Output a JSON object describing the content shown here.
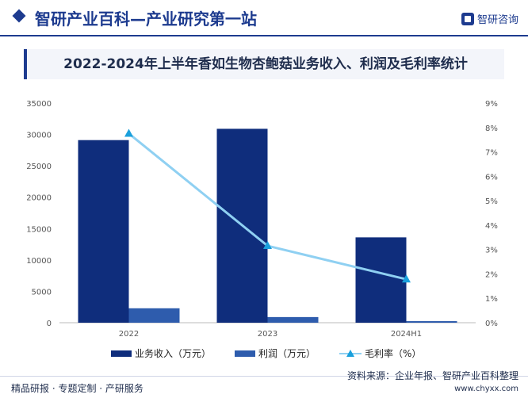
{
  "header": {
    "site_title": "智研产业百科—产业研究第一站",
    "brand": "智研咨询",
    "brand_icon": "zhiyan-logo-icon"
  },
  "chart_data": {
    "type": "bar",
    "title": "2022-2024年上半年香如生物杏鲍菇业务收入、利润及毛利率统计",
    "categories": [
      "2022",
      "2023",
      "2024H1"
    ],
    "series": [
      {
        "name": "业务收入（万元）",
        "kind": "bar",
        "axis": "left",
        "color": "#0f2d7c",
        "values": [
          29100,
          30900,
          13600
        ]
      },
      {
        "name": "利润（万元）",
        "kind": "bar",
        "axis": "left",
        "color": "#2e5cad",
        "values": [
          2300,
          900,
          250
        ]
      },
      {
        "name": "毛利率（%）",
        "kind": "line",
        "axis": "right",
        "color": "#8fd0f2",
        "marker_color": "#1aa0dc",
        "values": [
          7.75,
          3.15,
          1.78
        ]
      }
    ],
    "y_left": {
      "min": 0,
      "max": 35000,
      "ticks": [
        "0",
        "5000",
        "10000",
        "15000",
        "20000",
        "25000",
        "30000",
        "35000"
      ]
    },
    "y_right": {
      "min": 0,
      "max": 9,
      "ticks": [
        "0%",
        "1%",
        "2%",
        "3%",
        "4%",
        "5%",
        "6%",
        "7%",
        "8%",
        "9%"
      ]
    },
    "grid": false,
    "legend": "bottom"
  },
  "footer": {
    "left": "精品研报 · 专题定制 · 产研服务",
    "source": "资料来源：企业年报、智研产业百科整理",
    "url": "www.chyxx.com"
  }
}
